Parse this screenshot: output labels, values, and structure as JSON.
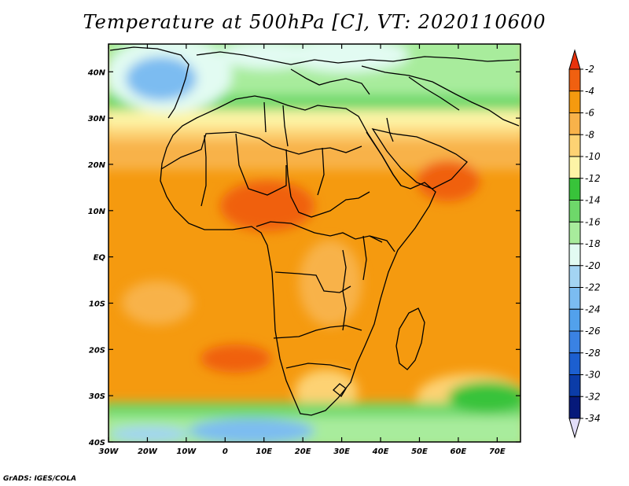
{
  "title": "Temperature at 500hPa [C], VT: 2020110600",
  "credit": "GrADS: IGES/COLA",
  "map": {
    "lon_range": [
      -30,
      76
    ],
    "lat_range": [
      -40,
      46
    ],
    "x_ticks": [
      "30W",
      "20W",
      "10W",
      "0",
      "10E",
      "20E",
      "30E",
      "40E",
      "50E",
      "60E",
      "70E"
    ],
    "y_ticks": [
      "40N",
      "30N",
      "20N",
      "10N",
      "EQ",
      "10S",
      "20S",
      "30S",
      "40S"
    ]
  },
  "colorbar": {
    "labels": [
      "-2",
      "-4",
      "-6",
      "-8",
      "-10",
      "-12",
      "-14",
      "-16",
      "-18",
      "-20",
      "-22",
      "-24",
      "-26",
      "-28",
      "-30",
      "-32",
      "-34"
    ],
    "colors": [
      "#e8320c",
      "#f06010",
      "#f59a0f",
      "#f8b24a",
      "#fdd273",
      "#fdf4a6",
      "#38c33a",
      "#6ed86a",
      "#a8ec9c",
      "#e2fbf2",
      "#a3d4f3",
      "#7bbcf1",
      "#52a1ec",
      "#3a82e3",
      "#1c5fd0",
      "#0b3ca8",
      "#06197a",
      "#e2def9"
    ]
  }
}
